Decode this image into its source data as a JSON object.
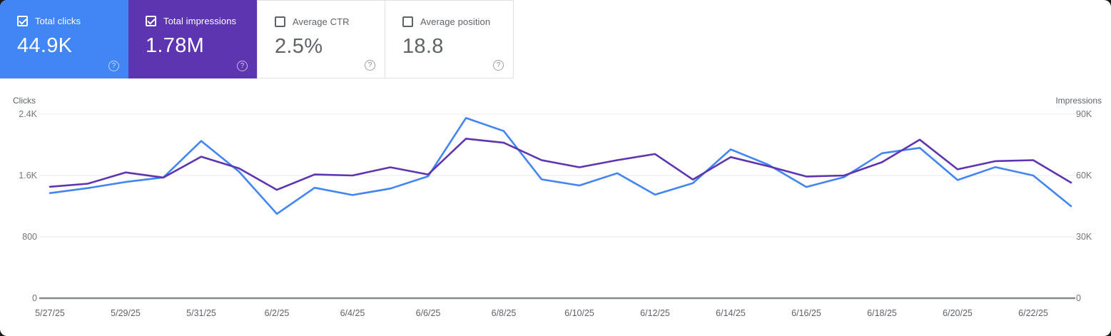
{
  "cards": [
    {
      "label": "Total clicks",
      "value": "44.9K",
      "checked": true,
      "color": "#4285f4"
    },
    {
      "label": "Total impressions",
      "value": "1.78M",
      "checked": true,
      "color": "#5e35b1"
    },
    {
      "label": "Average CTR",
      "value": "2.5%",
      "checked": false,
      "color": "#ffffff"
    },
    {
      "label": "Average position",
      "value": "18.8",
      "checked": false,
      "color": "#ffffff"
    }
  ],
  "chart_data": {
    "type": "line",
    "x": [
      "5/27/25",
      "5/28/25",
      "5/29/25",
      "5/30/25",
      "5/31/25",
      "6/1/25",
      "6/2/25",
      "6/3/25",
      "6/4/25",
      "6/5/25",
      "6/6/25",
      "6/7/25",
      "6/8/25",
      "6/9/25",
      "6/10/25",
      "6/11/25",
      "6/12/25",
      "6/13/25",
      "6/14/25",
      "6/15/25",
      "6/16/25",
      "6/17/25",
      "6/18/25",
      "6/19/25",
      "6/20/25",
      "6/21/25",
      "6/22/25",
      "6/23/25"
    ],
    "x_tick_labels": [
      "5/27/25",
      "5/29/25",
      "5/31/25",
      "6/2/25",
      "6/4/25",
      "6/6/25",
      "6/8/25",
      "6/10/25",
      "6/12/25",
      "6/14/25",
      "6/16/25",
      "6/18/25",
      "6/20/25",
      "6/22/25"
    ],
    "series": [
      {
        "name": "Clicks",
        "axis": "left",
        "color": "#4285f4",
        "values": [
          1370,
          1435,
          1515,
          1575,
          2050,
          1650,
          1100,
          1440,
          1345,
          1430,
          1590,
          2350,
          2180,
          1550,
          1470,
          1630,
          1350,
          1500,
          1940,
          1740,
          1450,
          1580,
          1890,
          1960,
          1540,
          1710,
          1600,
          1200
        ]
      },
      {
        "name": "Impressions",
        "axis": "right",
        "color": "#5e35b1",
        "values": [
          54500,
          56000,
          61500,
          59000,
          69200,
          63500,
          53000,
          60500,
          60000,
          64000,
          60500,
          78000,
          76000,
          67500,
          64000,
          67500,
          70500,
          58000,
          69000,
          64500,
          59500,
          60000,
          66500,
          77500,
          63000,
          67000,
          67500,
          56500
        ]
      }
    ],
    "left_axis": {
      "title": "Clicks",
      "ticks": [
        "0",
        "800",
        "1.6K",
        "2.4K"
      ],
      "ylim": [
        0,
        2400
      ]
    },
    "right_axis": {
      "title": "Impressions",
      "ticks": [
        "0",
        "30K",
        "60K",
        "90K"
      ],
      "ylim": [
        0,
        90000
      ]
    },
    "grid": true,
    "legend": "none"
  }
}
